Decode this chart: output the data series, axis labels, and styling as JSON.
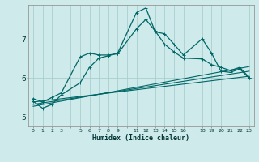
{
  "xlabel": "Humidex (Indice chaleur)",
  "background_color": "#ceeaea",
  "grid_color": "#aacfcf",
  "line_color": "#006666",
  "xlim": [
    -0.5,
    23.5
  ],
  "ylim": [
    4.75,
    7.9
  ],
  "x_ticks": [
    0,
    1,
    2,
    3,
    4,
    5,
    6,
    7,
    8,
    9,
    10,
    11,
    12,
    13,
    14,
    15,
    16,
    17,
    18,
    19,
    20,
    21,
    22,
    23
  ],
  "x_tick_labels": [
    "0",
    "1",
    "2",
    "3",
    "",
    "5",
    "6",
    "7",
    "8",
    "9",
    "",
    "11",
    "12",
    "13",
    "14",
    "15",
    "16",
    "",
    "18",
    "19",
    "20",
    "21",
    "22",
    "23"
  ],
  "y_ticks": [
    5,
    6,
    7
  ],
  "series1_x": [
    0,
    1,
    2,
    3,
    5,
    6,
    7,
    8,
    9,
    11,
    12,
    13,
    14,
    15,
    16,
    18,
    19,
    20,
    21,
    22,
    23
  ],
  "series1_y": [
    5.47,
    5.38,
    5.5,
    5.62,
    6.55,
    6.65,
    6.6,
    6.6,
    6.63,
    7.28,
    7.52,
    7.22,
    6.88,
    6.68,
    6.52,
    6.5,
    6.35,
    6.28,
    6.2,
    6.28,
    6.02
  ],
  "series2_x": [
    0,
    1,
    2,
    3,
    5,
    6,
    7,
    8,
    9,
    11,
    12,
    13,
    14,
    15,
    16,
    18,
    19,
    20,
    21,
    22,
    23
  ],
  "series2_y": [
    5.4,
    5.22,
    5.32,
    5.57,
    5.88,
    6.28,
    6.52,
    6.58,
    6.65,
    7.7,
    7.82,
    7.2,
    7.15,
    6.88,
    6.6,
    7.02,
    6.65,
    6.18,
    6.15,
    6.24,
    6.0
  ],
  "series3_x": [
    0,
    23
  ],
  "series3_y": [
    5.38,
    6.05
  ],
  "series4_x": [
    0,
    23
  ],
  "series4_y": [
    5.32,
    6.18
  ],
  "series5_x": [
    0,
    23
  ],
  "series5_y": [
    5.27,
    6.3
  ]
}
